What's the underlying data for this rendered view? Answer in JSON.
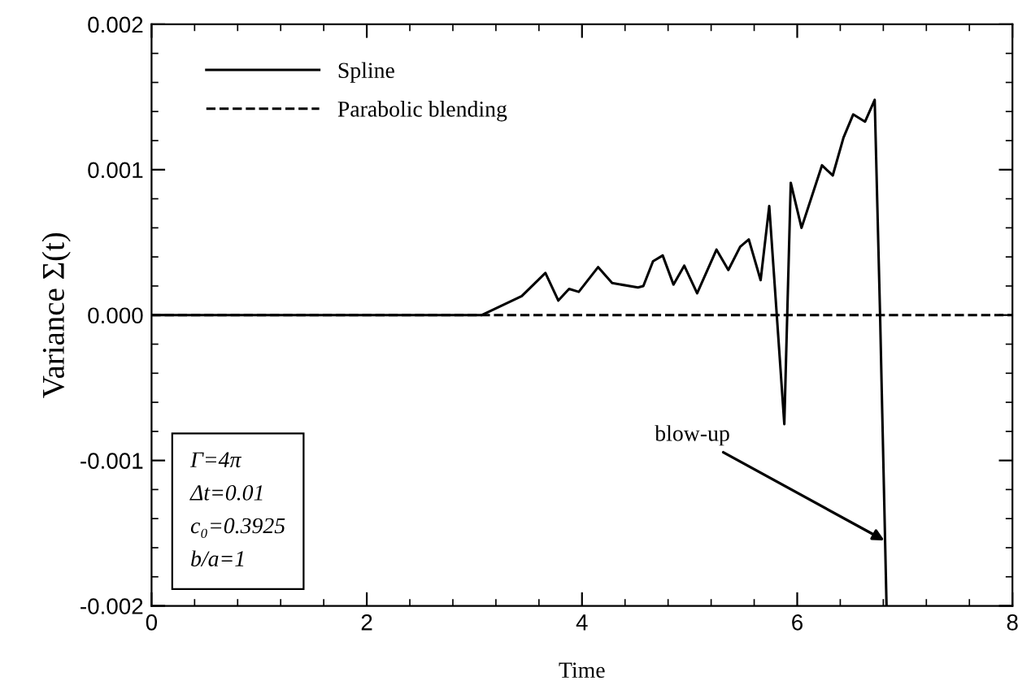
{
  "chart_data": {
    "type": "line",
    "xlabel": "Time",
    "ylabel": "Variance Σ(t)",
    "xlim": [
      0,
      8
    ],
    "ylim": [
      -0.002,
      0.002
    ],
    "xticks": [
      0,
      2,
      4,
      6,
      8,
      {
        "value": 0.4,
        "label": null
      },
      {
        "value": 0.8,
        "label": null
      },
      {
        "value": 1.2,
        "label": null
      },
      {
        "value": 1.6,
        "label": null
      },
      {
        "value": 2.4,
        "label": null
      },
      {
        "value": 2.8,
        "label": null
      },
      {
        "value": 3.2,
        "label": null
      },
      {
        "value": 3.6,
        "label": null
      },
      {
        "value": 4.4,
        "label": null
      },
      {
        "value": 4.8,
        "label": null
      },
      {
        "value": 5.2,
        "label": null
      },
      {
        "value": 5.6,
        "label": null
      },
      {
        "value": 6.4,
        "label": null
      },
      {
        "value": 6.8,
        "label": null
      },
      {
        "value": 7.2,
        "label": null
      },
      {
        "value": 7.6,
        "label": null
      }
    ],
    "yticks": [
      {
        "value": -0.002,
        "label": "-0.002"
      },
      {
        "value": -0.001,
        "label": "-0.001"
      },
      {
        "value": 0,
        "label": "0.000"
      },
      {
        "value": 0.001,
        "label": "0.001"
      },
      {
        "value": 0.002,
        "label": "0.002"
      },
      {
        "value": -0.0018,
        "label": null
      },
      {
        "value": -0.0016,
        "label": null
      },
      {
        "value": -0.0014,
        "label": null
      },
      {
        "value": -0.0012,
        "label": null
      },
      {
        "value": -0.0008,
        "label": null
      },
      {
        "value": -0.0006,
        "label": null
      },
      {
        "value": -0.0004,
        "label": null
      },
      {
        "value": -0.0002,
        "label": null
      },
      {
        "value": 0.0002,
        "label": null
      },
      {
        "value": 0.0004,
        "label": null
      },
      {
        "value": 0.0006,
        "label": null
      },
      {
        "value": 0.0008,
        "label": null
      },
      {
        "value": 0.0012,
        "label": null
      },
      {
        "value": 0.0014,
        "label": null
      },
      {
        "value": 0.0016,
        "label": null
      },
      {
        "value": 0.0018,
        "label": null
      }
    ],
    "grid": false,
    "legend": "top left",
    "marker": "none",
    "series": [
      {
        "name": "Spline",
        "color": "#000000",
        "line_style": "solid",
        "x": [
          0,
          2.5,
          3.07,
          3.44,
          3.66,
          3.78,
          3.88,
          3.97,
          4.15,
          4.28,
          4.52,
          4.57,
          4.66,
          4.75,
          4.85,
          4.95,
          5.07,
          5.25,
          5.36,
          5.47,
          5.55,
          5.66,
          5.74,
          5.81,
          5.88,
          5.94,
          6.04,
          6.23,
          6.33,
          6.43,
          6.52,
          6.63,
          6.72,
          6.77,
          6.83
        ],
        "values": [
          0,
          0,
          0,
          0.00013,
          0.00029,
          0.0001,
          0.00018,
          0.00016,
          0.00033,
          0.00022,
          0.00019,
          0.0002,
          0.00037,
          0.00041,
          0.00021,
          0.00034,
          0.00015,
          0.00045,
          0.00031,
          0.00047,
          0.00052,
          0.00024,
          0.00075,
          0,
          -0.00075,
          0.00091,
          0.0006,
          0.00103,
          0.00096,
          0.00122,
          0.00138,
          0.00133,
          0.00148,
          0,
          -0.002
        ]
      },
      {
        "name": "Parabolic blending",
        "color": "#000000",
        "line_style": "dashed",
        "x": [
          0,
          8
        ],
        "values": [
          0,
          0
        ]
      }
    ],
    "annotations": [
      "Γ=4π",
      "Δt=0.01",
      "c₀=0.3925",
      "b/a=1",
      {
        "text": "blow-up",
        "x": 6.81,
        "y": -0.00155
      }
    ]
  }
}
